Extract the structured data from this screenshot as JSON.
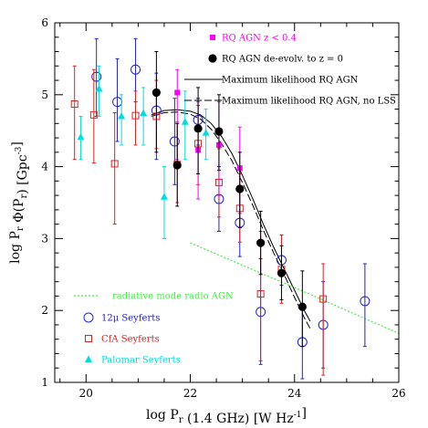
{
  "chart_data": {
    "type": "scatter",
    "xlabel": "log P_r (1.4 GHz) [W Hz^-1]",
    "ylabel": "log P_r Φ(P_r) [Gpc^-3]",
    "xlim": [
      19.4,
      26
    ],
    "ylim": [
      1,
      6
    ],
    "x_ticks": [
      "20",
      "22",
      "24",
      "26"
    ],
    "y_ticks": [
      "1",
      "2",
      "3",
      "4",
      "5",
      "6"
    ],
    "grid": false,
    "legend_placement": "top-right and bottom-left",
    "colors": {
      "rq_agn": "#ff00ff",
      "rq_agn_deevolved": "#000000",
      "ml": "#000000",
      "ml_nolss": "#000000",
      "radiative": "#44ee44",
      "seyfert12": "#2222cc",
      "cfa": "#dd2222",
      "palomar": "#00dddd"
    },
    "legend": {
      "rq_agn": "RQ AGN   z < 0.4",
      "rq_agn_deevolved": "RQ AGN de-evolv. to z = 0",
      "ml": "Maximum likelihood RQ AGN",
      "ml_nolss": "Maximum likelihood RQ AGN, no LSS",
      "radiative": "radiative mode radio AGN",
      "seyfert12": "12μ Seyferts",
      "cfa": "CfA Seyferts",
      "palomar": "Palomar Seyferts"
    },
    "series": [
      {
        "key": "seyfert12",
        "marker": "open-circle",
        "points": [
          {
            "x": 20.2,
            "y": 5.25,
            "lo": 4.7,
            "hi": 5.78
          },
          {
            "x": 20.6,
            "y": 4.9,
            "lo": 4.35,
            "hi": 5.5
          },
          {
            "x": 20.95,
            "y": 5.35,
            "lo": 4.9,
            "hi": 5.78
          },
          {
            "x": 21.35,
            "y": 4.78,
            "lo": 4.1,
            "hi": 5.3
          },
          {
            "x": 21.7,
            "y": 4.35,
            "lo": 3.75,
            "hi": 4.95
          },
          {
            "x": 22.15,
            "y": 4.65,
            "lo": 4.3,
            "hi": 4.95
          },
          {
            "x": 22.55,
            "y": 3.55,
            "lo": 3.1,
            "hi": 4.0
          },
          {
            "x": 22.95,
            "y": 3.22,
            "lo": 2.75,
            "hi": 3.65
          },
          {
            "x": 23.35,
            "y": 1.98,
            "lo": 1.25,
            "hi": 2.72
          },
          {
            "x": 23.75,
            "y": 2.7,
            "lo": 2.35,
            "hi": 3.05
          },
          {
            "x": 24.15,
            "y": 1.56,
            "lo": 1.05,
            "hi": 2.1
          },
          {
            "x": 24.55,
            "y": 1.8,
            "lo": 1.2,
            "hi": 2.4
          },
          {
            "x": 25.35,
            "y": 2.13,
            "lo": 1.5,
            "hi": 2.65
          }
        ]
      },
      {
        "key": "cfa",
        "marker": "open-square",
        "points": [
          {
            "x": 19.78,
            "y": 4.87,
            "lo": 4.1,
            "hi": 5.4
          },
          {
            "x": 20.15,
            "y": 4.72,
            "lo": 4.05,
            "hi": 5.35
          },
          {
            "x": 20.55,
            "y": 4.04,
            "lo": 3.2,
            "hi": 4.75
          },
          {
            "x": 20.95,
            "y": 4.71,
            "lo": 4.3,
            "hi": 5.05
          },
          {
            "x": 21.35,
            "y": 4.7,
            "lo": 4.25,
            "hi": 5.2
          },
          {
            "x": 21.75,
            "y": 4.03,
            "lo": 3.5,
            "hi": 4.62
          },
          {
            "x": 22.15,
            "y": 4.32,
            "lo": 3.75,
            "hi": 4.85
          },
          {
            "x": 22.55,
            "y": 3.78,
            "lo": 3.3,
            "hi": 4.25
          },
          {
            "x": 22.95,
            "y": 3.42,
            "lo": 2.95,
            "hi": 3.9
          },
          {
            "x": 23.35,
            "y": 2.23,
            "lo": 1.3,
            "hi": 3.1
          },
          {
            "x": 23.75,
            "y": 2.57,
            "lo": 2.1,
            "hi": 3.05
          },
          {
            "x": 24.55,
            "y": 2.16,
            "lo": 1.1,
            "hi": 2.65
          }
        ]
      },
      {
        "key": "palomar",
        "marker": "filled-triangle",
        "points": [
          {
            "x": 19.9,
            "y": 4.41,
            "lo": 4.1,
            "hi": 4.7
          },
          {
            "x": 20.25,
            "y": 5.08,
            "lo": 4.7,
            "hi": 5.4
          },
          {
            "x": 20.68,
            "y": 4.7,
            "lo": 4.3,
            "hi": 5.0
          },
          {
            "x": 21.1,
            "y": 4.74,
            "lo": 4.3,
            "hi": 5.1
          },
          {
            "x": 21.5,
            "y": 3.58,
            "lo": 3.0,
            "hi": 4.0
          },
          {
            "x": 21.9,
            "y": 4.62,
            "lo": 4.1,
            "hi": 5.05
          },
          {
            "x": 22.3,
            "y": 4.47,
            "lo": 4.1,
            "hi": 4.8
          }
        ]
      },
      {
        "key": "rq_agn",
        "marker": "filled-square",
        "points": [
          {
            "x": 21.75,
            "y": 5.03,
            "lo": 4.1,
            "hi": 5.35
          },
          {
            "x": 22.15,
            "y": 4.23,
            "lo": 3.55,
            "hi": 4.9
          },
          {
            "x": 22.55,
            "y": 4.3,
            "lo": 3.6,
            "hi": 4.9
          },
          {
            "x": 22.95,
            "y": 3.98,
            "lo": 3.35,
            "hi": 4.55
          }
        ]
      },
      {
        "key": "rq_agn_deevolved",
        "marker": "filled-circle",
        "points": [
          {
            "x": 21.35,
            "y": 5.03,
            "lo": 4.2,
            "hi": 5.6
          },
          {
            "x": 21.75,
            "y": 4.02,
            "lo": 3.45,
            "hi": 4.6
          },
          {
            "x": 22.15,
            "y": 4.53,
            "lo": 3.9,
            "hi": 5.1
          },
          {
            "x": 22.55,
            "y": 4.49,
            "lo": 3.95,
            "hi": 5.0
          },
          {
            "x": 22.95,
            "y": 3.69,
            "lo": 3.15,
            "hi": 4.2
          },
          {
            "x": 23.35,
            "y": 2.94,
            "lo": 2.5,
            "hi": 3.38
          },
          {
            "x": 23.75,
            "y": 2.52,
            "lo": 2.15,
            "hi": 2.9
          },
          {
            "x": 24.15,
            "y": 2.05,
            "lo": 1.5,
            "hi": 2.55
          }
        ]
      }
    ],
    "curves": [
      {
        "key": "ml",
        "style": "solid",
        "x": [
          21.25,
          21.5,
          21.75,
          22.0,
          22.2,
          22.4,
          22.6,
          22.8,
          23.0,
          23.2,
          23.4,
          23.6,
          23.8,
          24.0,
          24.2,
          24.3
        ],
        "y": [
          4.72,
          4.78,
          4.79,
          4.77,
          4.72,
          4.6,
          4.42,
          4.18,
          3.88,
          3.55,
          3.2,
          2.88,
          2.58,
          2.28,
          1.98,
          1.85
        ]
      },
      {
        "key": "ml_nolss",
        "style": "dashed",
        "x": [
          21.25,
          21.5,
          21.75,
          22.0,
          22.2,
          22.4,
          22.6,
          22.8,
          23.0,
          23.2,
          23.4,
          23.6,
          23.8,
          24.0,
          24.2,
          24.3
        ],
        "y": [
          4.7,
          4.75,
          4.76,
          4.73,
          4.66,
          4.52,
          4.32,
          4.08,
          3.78,
          3.46,
          3.12,
          2.8,
          2.5,
          2.18,
          1.88,
          1.75
        ]
      },
      {
        "key": "radiative",
        "style": "dotted",
        "x": [
          22.0,
          23.0,
          24.0,
          25.0,
          26.0
        ],
        "y": [
          2.94,
          2.63,
          2.32,
          2.0,
          1.68
        ]
      }
    ]
  }
}
